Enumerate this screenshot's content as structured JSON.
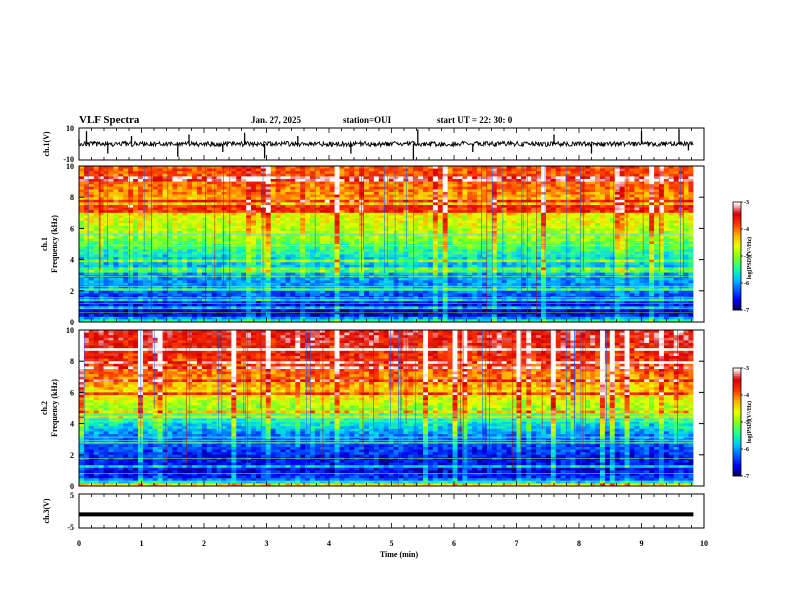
{
  "header": {
    "title": "VLF Spectra",
    "date": "Jan. 27, 2025",
    "station": "station=OUI",
    "start": "start  UT  =   22: 30: 0"
  },
  "chart_data": [
    {
      "type": "line",
      "name": "ch1-waveform",
      "ylabel": "ch.1(V)",
      "ylim": [
        -10,
        10
      ],
      "yticks": [
        "10",
        "-10"
      ],
      "x": [
        0.0,
        0.12,
        0.46,
        0.84,
        1.58,
        1.76,
        2.3,
        2.65,
        2.97,
        3.5,
        4.35,
        5.35,
        5.42,
        6.3,
        7.6,
        8.2,
        9.0,
        9.6,
        9.75
      ],
      "y": [
        3.0,
        8.0,
        -6.0,
        5.0,
        -8.0,
        6.0,
        -5.0,
        7.0,
        -9.0,
        5.0,
        -6.0,
        -10.0,
        9.0,
        -5.0,
        6.0,
        -6.0,
        8.0,
        9.0,
        -4.0
      ],
      "baseline": 0
    },
    {
      "type": "heatmap",
      "name": "ch1-spectrogram",
      "ylabel": "ch.1",
      "ylabel2": "Frequency  (kHz)",
      "xlim": [
        0,
        10
      ],
      "ylim": [
        0,
        10
      ],
      "yticks": [
        "0",
        "2",
        "4",
        "6",
        "8",
        "10"
      ],
      "colorbar": {
        "label": "log(PSD)(V²/Hz)",
        "ticks": [
          "-3",
          "-4",
          "-5",
          "-6",
          "-7"
        ],
        "range": [
          -7,
          -3
        ]
      },
      "profile_freq_khz": [
        0,
        0.5,
        0.8,
        1.2,
        1.8,
        2.5,
        3.2,
        4.0,
        4.7,
        5.5,
        6.5,
        7.5,
        8.5,
        10
      ],
      "profile_log_psd": [
        -5.2,
        -6.8,
        -6.6,
        -6.5,
        -6.2,
        -6.0,
        -5.9,
        -5.7,
        -5.3,
        -4.9,
        -4.6,
        -4.3,
        -4.0,
        -3.8
      ]
    },
    {
      "type": "heatmap",
      "name": "ch2-spectrogram",
      "ylabel": "ch.2",
      "ylabel2": "Frequency  (kHz)",
      "xlim": [
        0,
        10
      ],
      "ylim": [
        0,
        10
      ],
      "yticks": [
        "0",
        "2",
        "4",
        "6",
        "8",
        "10"
      ],
      "colorbar": {
        "label": "log(PSD)(V²/Hz)",
        "ticks": [
          "-3",
          "-4",
          "-5",
          "-6",
          "-7"
        ],
        "range": [
          -7,
          -3
        ]
      },
      "profile_freq_khz": [
        0,
        0.5,
        1.0,
        1.8,
        2.5,
        3.2,
        4.0,
        4.8,
        5.6,
        6.5,
        7.5,
        8.5,
        10
      ],
      "profile_log_psd": [
        -5.0,
        -6.4,
        -6.6,
        -6.5,
        -6.3,
        -6.1,
        -5.6,
        -5.0,
        -4.6,
        -4.2,
        -3.9,
        -3.6,
        -3.4
      ]
    },
    {
      "type": "line",
      "name": "ch3-waveform",
      "ylabel": "ch.3(V)",
      "ylim": [
        -5,
        5
      ],
      "yticks": [
        "5",
        "-5"
      ],
      "x": [
        0,
        9.83
      ],
      "y": [
        -1,
        -1
      ]
    }
  ],
  "xaxis": {
    "label": "Time  (min)",
    "xlim": [
      0,
      10
    ],
    "ticks": [
      "0",
      "1",
      "2",
      "3",
      "4",
      "5",
      "6",
      "7",
      "8",
      "9",
      "10"
    ],
    "data_end": 9.83
  },
  "colormap": [
    "#00004c",
    "#0000e8",
    "#0060ff",
    "#00c8ff",
    "#20ff90",
    "#80ff20",
    "#e8ff00",
    "#ffb000",
    "#ff3800",
    "#d40000",
    "#ffffff"
  ]
}
